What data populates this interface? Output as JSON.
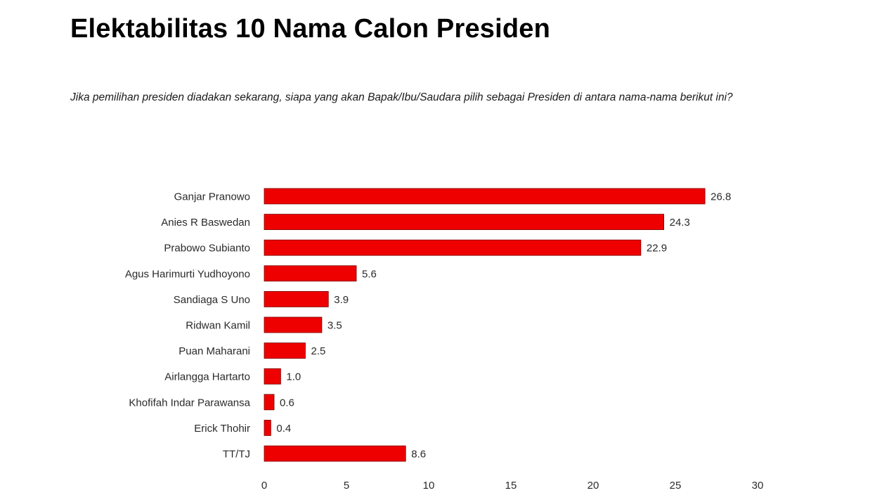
{
  "title": "Elektabilitas 10 Nama Calon Presiden",
  "question": "Jika pemilihan presiden diadakan sekarang, siapa yang akan Bapak/Ibu/Saudara pilih sebagai Presiden di antara nama-nama berikut ini?",
  "chart_data": {
    "type": "bar",
    "orientation": "horizontal",
    "categories": [
      "Ganjar Pranowo",
      "Anies R Baswedan",
      "Prabowo Subianto",
      "Agus Harimurti Yudhoyono",
      "Sandiaga S Uno",
      "Ridwan Kamil",
      "Puan Maharani",
      "Airlangga Hartarto",
      "Khofifah Indar Parawansa",
      "Erick Thohir",
      "TT/TJ"
    ],
    "values": [
      26.8,
      24.3,
      22.9,
      5.6,
      3.9,
      3.5,
      2.5,
      1.0,
      0.6,
      0.4,
      8.6
    ],
    "value_labels": [
      "26.8",
      "24.3",
      "22.9",
      "5.6",
      "3.9",
      "3.5",
      "2.5",
      "1.0",
      "0.6",
      "0.4",
      "8.6"
    ],
    "xlim": [
      0,
      30
    ],
    "x_ticks": [
      0,
      5,
      10,
      15,
      20,
      25,
      30
    ],
    "grid": false,
    "legend": "none",
    "bar_color": "#ee0000"
  }
}
